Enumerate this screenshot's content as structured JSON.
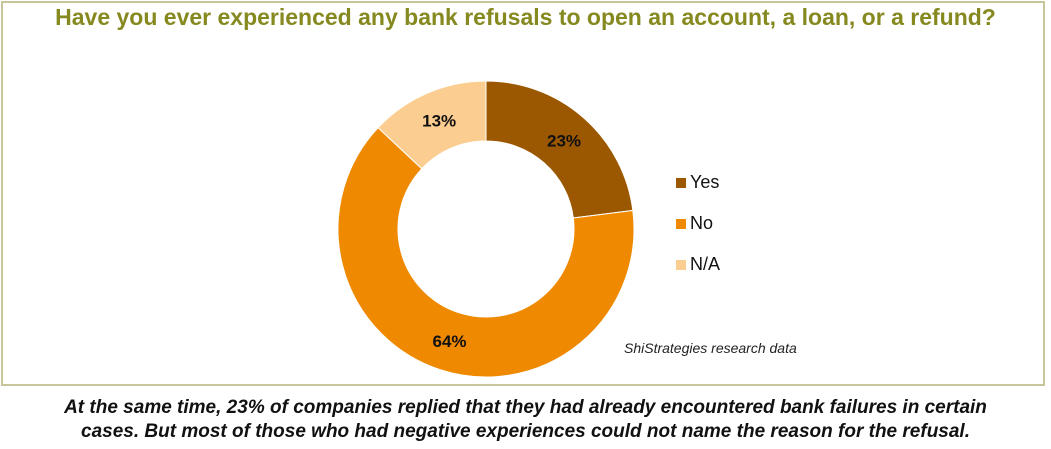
{
  "chart_data": {
    "type": "pie",
    "donut": true,
    "title": "Have you ever experienced any bank refusals to open an account, a loan, or a refund?",
    "categories": [
      "Yes",
      "No",
      "N/A"
    ],
    "values": [
      23,
      64,
      13
    ],
    "data_labels": [
      "23%",
      "64%",
      "13%"
    ],
    "colors": [
      "#9b5800",
      "#ee8900",
      "#fbcd90"
    ],
    "legend_position": "right",
    "source": "ShiStrategies research data"
  },
  "caption": {
    "line1": "At the same time, 23% of companies replied that they had already encountered bank failures in certain",
    "line2": "cases. But most of those who had negative experiences could not name the reason for the refusal."
  }
}
